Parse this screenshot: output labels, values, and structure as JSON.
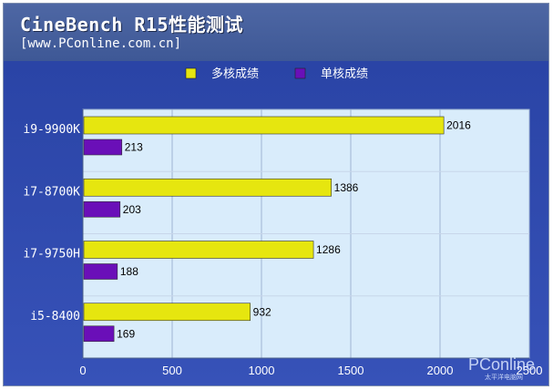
{
  "header": {
    "title": "CineBench R15性能测试",
    "source": "[www.PConline.com.cn]"
  },
  "watermark": {
    "logo_text": "PConline",
    "sub_text": "太平洋电脑网"
  },
  "colors": {
    "multi": "#e6e60f",
    "single": "#6a0fb8",
    "plot_area": "#d9ecfb"
  },
  "chart_data": {
    "type": "bar",
    "orientation": "horizontal",
    "categories": [
      "i9-9900K",
      "i7-8700K",
      "i7-9750H",
      "i5-8400"
    ],
    "series": [
      {
        "name": "多核成绩",
        "values": [
          2016,
          1386,
          1286,
          932
        ]
      },
      {
        "name": "单核成绩",
        "values": [
          213,
          203,
          188,
          169
        ]
      }
    ],
    "xlim": [
      0,
      2500
    ],
    "xticks": [
      0,
      500,
      1000,
      1500,
      2000,
      2500
    ],
    "grid": true,
    "legend_position": "top"
  }
}
